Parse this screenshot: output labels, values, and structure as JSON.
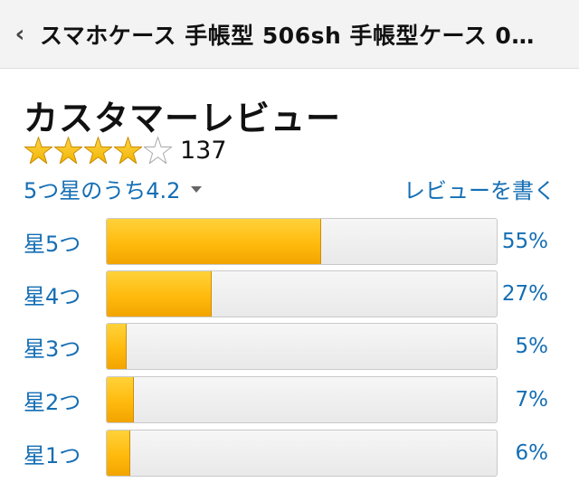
{
  "header": {
    "back_icon": "chevron-left-icon",
    "title": "スマホケース 手帳型 506sh 手帳型ケース 0…"
  },
  "reviews": {
    "heading": "カスタマーレビュー",
    "stars": {
      "filled": 4,
      "total": 5,
      "color": "#f0b400"
    },
    "count": "137",
    "summary": "5つ星のうち4.2",
    "write_review": "レビューを書く",
    "histogram": [
      {
        "label": "星5つ",
        "percent": 55,
        "percent_text": "55%"
      },
      {
        "label": "星4つ",
        "percent": 27,
        "percent_text": "27%"
      },
      {
        "label": "星3つ",
        "percent": 5,
        "percent_text": "5%"
      },
      {
        "label": "星2つ",
        "percent": 7,
        "percent_text": "7%"
      },
      {
        "label": "星1つ",
        "percent": 6,
        "percent_text": "6%"
      }
    ]
  },
  "colors": {
    "link": "#146eb4",
    "bar_fill": "#ffba0d",
    "bar_track": "#eeeeee"
  }
}
